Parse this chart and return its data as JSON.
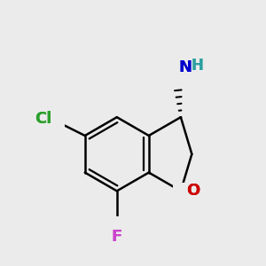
{
  "bg_color": "#ebebeb",
  "bond_color": "#000000",
  "bond_width": 1.8,
  "cl_label": "Cl",
  "cl_color": "#2ca02c",
  "f_label": "F",
  "f_color": "#cc44cc",
  "o_label": "O",
  "o_color": "#cc0000",
  "n_label": "N",
  "n_color": "#0000cc",
  "h_label": "H",
  "h_color": "#2ca0a0",
  "font_size_atom": 13,
  "font_size_h": 12
}
